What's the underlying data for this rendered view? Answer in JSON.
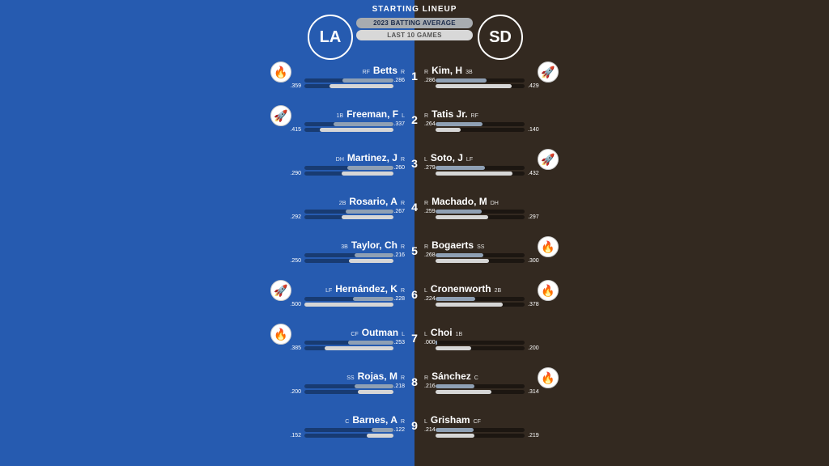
{
  "title": "STARTING LINEUP",
  "legend": {
    "season": "2023 BATTING AVERAGE",
    "last10": "LAST 10 GAMES"
  },
  "colors": {
    "left_bg": "#265bb0",
    "right_bg": "#332920",
    "bar_season": "#8fa0b4",
    "bar_last10": "#d6d6d6",
    "track": "#223",
    "track_right": "#1f1a14"
  },
  "teams": {
    "left": {
      "abbr": "LA",
      "logo_bg": "#265bb0"
    },
    "right": {
      "abbr": "SD",
      "logo_bg": "#332920"
    }
  },
  "bar_scale_max": 0.5,
  "lineup": [
    {
      "order": 1,
      "left": {
        "pos": "RF",
        "name": "Betts",
        "bats": "R",
        "avg": ".286",
        "l10": ".359",
        "badge": "fire"
      },
      "right": {
        "pos": "3B",
        "name": "Kim, H",
        "bats": "R",
        "avg": ".286",
        "l10": ".429",
        "badge": "rocket"
      }
    },
    {
      "order": 2,
      "left": {
        "pos": "1B",
        "name": "Freeman, F",
        "bats": "L",
        "avg": ".337",
        "l10": ".415",
        "badge": "rocket"
      },
      "right": {
        "pos": "RF",
        "name": "Tatis Jr.",
        "bats": "R",
        "avg": ".264",
        "l10": ".140"
      }
    },
    {
      "order": 3,
      "left": {
        "pos": "DH",
        "name": "Martinez, J",
        "bats": "R",
        "avg": ".260",
        "l10": ".290"
      },
      "right": {
        "pos": "LF",
        "name": "Soto, J",
        "bats": "L",
        "avg": ".279",
        "l10": ".432",
        "badge": "rocket"
      }
    },
    {
      "order": 4,
      "left": {
        "pos": "2B",
        "name": "Rosario, A",
        "bats": "R",
        "avg": ".267",
        "l10": ".292"
      },
      "right": {
        "pos": "DH",
        "name": "Machado, M",
        "bats": "R",
        "avg": ".259",
        "l10": ".297"
      }
    },
    {
      "order": 5,
      "left": {
        "pos": "3B",
        "name": "Taylor, Ch",
        "bats": "R",
        "avg": ".216",
        "l10": ".250"
      },
      "right": {
        "pos": "SS",
        "name": "Bogaerts",
        "bats": "R",
        "avg": ".268",
        "l10": ".300",
        "badge": "fire"
      }
    },
    {
      "order": 6,
      "left": {
        "pos": "LF",
        "name": "Hernández, K",
        "bats": "R",
        "avg": ".228",
        "l10": ".500",
        "badge": "rocket"
      },
      "right": {
        "pos": "2B",
        "name": "Cronenworth",
        "bats": "L",
        "avg": ".224",
        "l10": ".378",
        "badge": "fire"
      }
    },
    {
      "order": 7,
      "left": {
        "pos": "CF",
        "name": "Outman",
        "bats": "L",
        "avg": ".253",
        "l10": ".385",
        "badge": "fire"
      },
      "right": {
        "pos": "1B",
        "name": "Choi",
        "bats": "L",
        "avg": ".000",
        "l10": ".200"
      }
    },
    {
      "order": 8,
      "left": {
        "pos": "SS",
        "name": "Rojas, M",
        "bats": "R",
        "avg": ".218",
        "l10": ".200"
      },
      "right": {
        "pos": "C",
        "name": "Sánchez",
        "bats": "R",
        "avg": ".216",
        "l10": ".314",
        "badge": "fire"
      }
    },
    {
      "order": 9,
      "left": {
        "pos": "C",
        "name": "Barnes, A",
        "bats": "R",
        "avg": ".122",
        "l10": ".152"
      },
      "right": {
        "pos": "CF",
        "name": "Grisham",
        "bats": "L",
        "avg": ".214",
        "l10": ".219"
      }
    }
  ]
}
